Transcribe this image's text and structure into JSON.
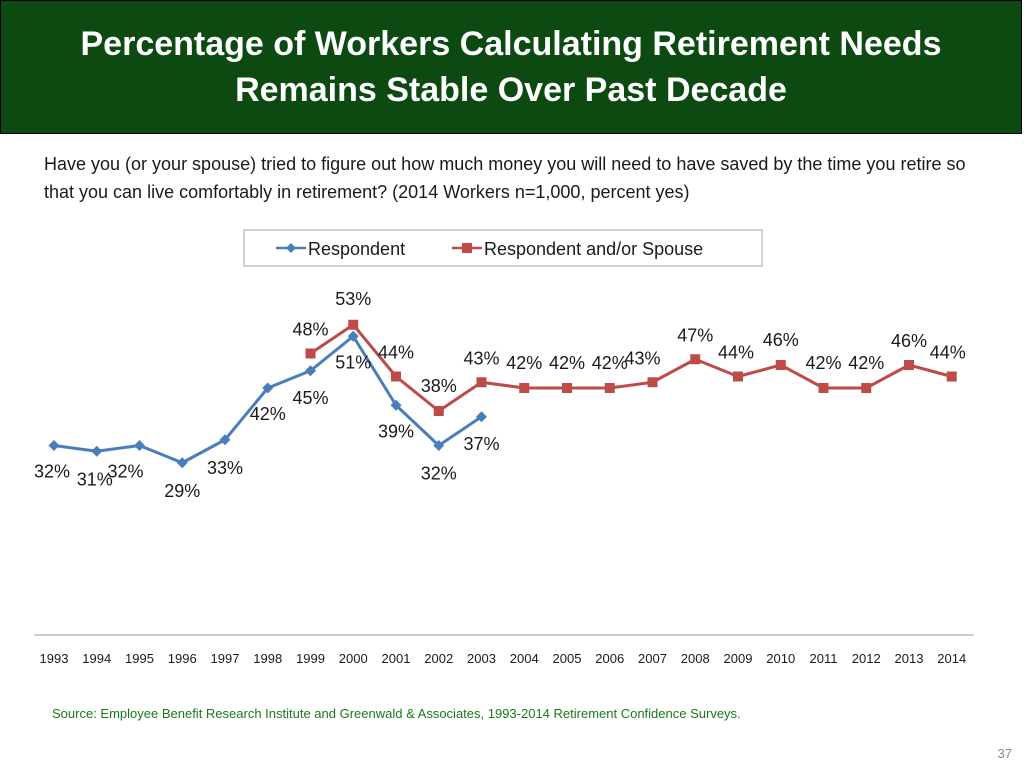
{
  "slide": {
    "title_line1": "Percentage of Workers Calculating Retirement Needs",
    "title_line2": "Remains Stable Over Past Decade",
    "question": "Have you (or your spouse) tried to figure out how much money you will need to have saved by the time you retire so that you can live comfortably in retirement?  (2014 Workers n=1,000, percent yes)",
    "source": "Source:  Employee Benefit Research Institute and Greenwald & Associates, 1993-2014 Retirement Confidence Surveys.",
    "page_number": "37"
  },
  "colors": {
    "title_bg": "#0d4a12",
    "respondent": "#4a7ebb",
    "spouse": "#be4b48",
    "source_text": "#1a7a1a"
  },
  "chart_data": {
    "type": "line",
    "x": [
      "1993",
      "1994",
      "1995",
      "1996",
      "1997",
      "1998",
      "1999",
      "2000",
      "2001",
      "2002",
      "2003",
      "2004",
      "2005",
      "2006",
      "2007",
      "2008",
      "2009",
      "2010",
      "2011",
      "2012",
      "2013",
      "2014"
    ],
    "series": [
      {
        "name": "Respondent",
        "marker": "diamond",
        "values": [
          32,
          31,
          32,
          29,
          33,
          42,
          45,
          51,
          39,
          32,
          37,
          null,
          null,
          null,
          null,
          null,
          null,
          null,
          null,
          null,
          null,
          null
        ],
        "labels": [
          "32%",
          "31%",
          "32%",
          "29%",
          "33%",
          "42%",
          "45%",
          "51%",
          "39%",
          "32%",
          "37%",
          null,
          null,
          null,
          null,
          null,
          null,
          null,
          null,
          null,
          null,
          null
        ]
      },
      {
        "name": "Respondent and/or Spouse",
        "marker": "square",
        "values": [
          null,
          null,
          null,
          null,
          null,
          null,
          48,
          53,
          44,
          38,
          43,
          42,
          42,
          42,
          43,
          47,
          44,
          46,
          42,
          42,
          46,
          44
        ],
        "labels": [
          null,
          null,
          null,
          null,
          null,
          null,
          "48%",
          "53%",
          "44%",
          "38%",
          "43%",
          "42%",
          "42%",
          "42%",
          "43%",
          "47%",
          "44%",
          "46%",
          "42%",
          "42%",
          "46%",
          "44%"
        ]
      }
    ],
    "ylim": [
      0,
      60
    ],
    "grid": false,
    "legend_position": "top-center"
  }
}
